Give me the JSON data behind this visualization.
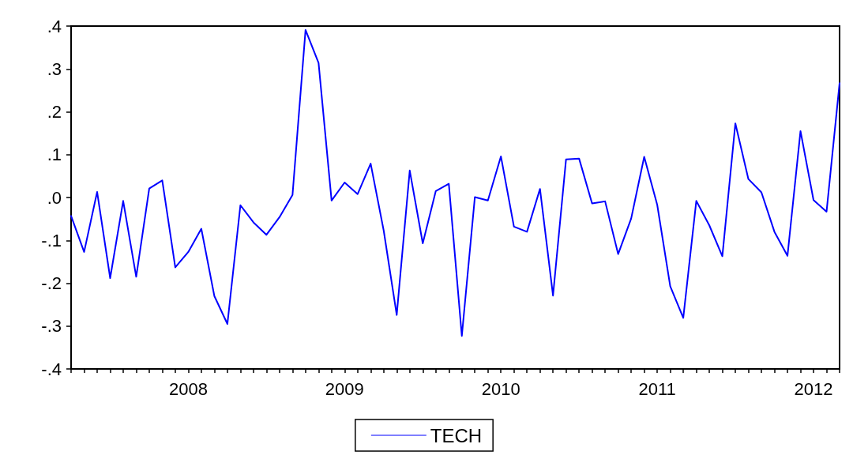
{
  "chart_data": {
    "type": "line",
    "categories": [
      null,
      null,
      null,
      null,
      null,
      null,
      null,
      null,
      null,
      "2008",
      null,
      null,
      null,
      null,
      null,
      null,
      null,
      null,
      null,
      null,
      null,
      "2009",
      null,
      null,
      null,
      null,
      null,
      null,
      null,
      null,
      null,
      null,
      null,
      "2010",
      null,
      null,
      null,
      null,
      null,
      null,
      null,
      null,
      null,
      null,
      null,
      "2011",
      null,
      null,
      null,
      null,
      null,
      null,
      null,
      null,
      null,
      null,
      null,
      "2012",
      null,
      null
    ],
    "series": [
      {
        "name": "TECH",
        "color": "#0000ff",
        "values": [
          -0.043,
          -0.127,
          0.013,
          -0.188,
          -0.008,
          -0.185,
          0.021,
          0.04,
          -0.163,
          -0.127,
          -0.073,
          -0.23,
          -0.295,
          -0.018,
          -0.058,
          -0.087,
          -0.046,
          0.006,
          0.391,
          0.314,
          -0.007,
          0.035,
          0.008,
          0.079,
          -0.077,
          -0.274,
          0.063,
          -0.107,
          0.015,
          0.032,
          -0.323,
          0.001,
          -0.007,
          0.096,
          -0.068,
          -0.08,
          0.02,
          -0.229,
          0.089,
          0.091,
          -0.014,
          -0.009,
          -0.132,
          -0.049,
          0.095,
          -0.017,
          -0.207,
          -0.281,
          -0.008,
          -0.065,
          -0.137,
          0.173,
          0.043,
          0.012,
          -0.08,
          -0.136,
          0.155,
          -0.006,
          -0.033,
          0.267
        ]
      }
    ],
    "ylim": [
      -0.4,
      0.4
    ],
    "yticks": [
      {
        "value": -0.4,
        "label": "-.4"
      },
      {
        "value": -0.3,
        "label": "-.3"
      },
      {
        "value": -0.2,
        "label": "-.2"
      },
      {
        "value": -0.1,
        "label": "-.1"
      },
      {
        "value": 0,
        "label": ".0"
      },
      {
        "value": 0.1,
        "label": ".1"
      },
      {
        "value": 0.2,
        "label": ".2"
      },
      {
        "value": 0.3,
        "label": ".3"
      },
      {
        "value": 0.4,
        "label": ".4"
      }
    ],
    "grid": false,
    "legend": "bottom",
    "marker": "none",
    "line_style": "solid"
  }
}
